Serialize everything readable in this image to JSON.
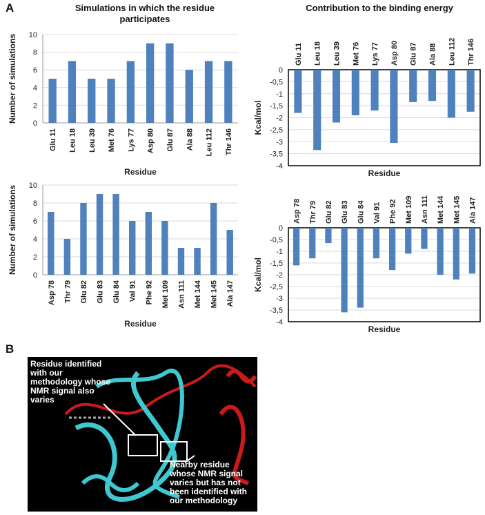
{
  "panel_labels": [
    "A",
    "B"
  ],
  "chart_data": [
    {
      "type": "bar",
      "title": "Simulations  in which the residue participates",
      "categories": [
        "Glu 11",
        "Leu 18",
        "Leu 39",
        "Met 76",
        "Lys 77",
        "Asp 80",
        "Glu 87",
        "Ala 88",
        "Leu 112",
        "Thr 146"
      ],
      "values": [
        5,
        7,
        5,
        5,
        7,
        9,
        9,
        6,
        7,
        7
      ],
      "color": "#4f81bd",
      "ylim": [
        0,
        10
      ],
      "yticks": [
        0,
        2,
        4,
        6,
        8,
        10
      ],
      "grid": true,
      "ylabel": "Number of simulations",
      "xlabel": "Residue",
      "xaxis_position": "bottom",
      "frame": false
    },
    {
      "type": "bar",
      "title": "Contribution to the binding energy",
      "categories": [
        "Glu 11",
        "Leu 18",
        "Leu 39",
        "Met 76",
        "Lys 77",
        "Asp 80",
        "Glu 87",
        "Ala 88",
        "Leu 112",
        "Thr 146"
      ],
      "values": [
        -1.8,
        -3.35,
        -2.2,
        -1.9,
        -1.7,
        -3.05,
        -1.35,
        -1.3,
        -2.0,
        -1.75
      ],
      "color": "#4f81bd",
      "ylim": [
        -4,
        0
      ],
      "yticks": [
        0,
        {
          "value": -0.5,
          "label": "-0,5"
        },
        -1,
        {
          "value": -1.5,
          "label": "-1,5"
        },
        -2,
        {
          "value": -2.5,
          "label": "-2,5"
        },
        -3,
        {
          "value": -3.5,
          "label": "-3,5"
        },
        -4
      ],
      "grid": true,
      "ylabel": "Kcal/mol",
      "xlabel": "Residue",
      "xaxis_position": "top",
      "frame": true
    },
    {
      "type": "bar",
      "categories": [
        "Asp 78",
        "Thr 79",
        "Glu 82",
        "Glu 83",
        "Glu 84",
        "Val 91",
        "Phe 92",
        "Met 109",
        "Asn 111",
        "Met 144",
        "Met 145",
        "Ala 147"
      ],
      "values": [
        7,
        4,
        8,
        9,
        9,
        6,
        7,
        6,
        3,
        3,
        8,
        5
      ],
      "color": "#4f81bd",
      "ylim": [
        0,
        10
      ],
      "yticks": [
        0,
        2,
        4,
        6,
        8,
        10
      ],
      "grid": true,
      "ylabel": "Number of simulations",
      "xlabel": "Residue",
      "xaxis_position": "bottom",
      "frame": false
    },
    {
      "type": "bar",
      "categories": [
        "Asp 78",
        "Thr 79",
        "Glu 82",
        "Glu 83",
        "Glu 84",
        "Val 91",
        "Phe 92",
        "Met 109",
        "Asn 111",
        "Met 144",
        "Met 145",
        "Ala 147"
      ],
      "values": [
        -1.6,
        -1.3,
        -0.65,
        -3.6,
        -3.4,
        -1.3,
        -1.8,
        -1.1,
        -0.9,
        -2.0,
        -2.2,
        -1.95
      ],
      "color": "#4f81bd",
      "ylim": [
        -4,
        0
      ],
      "yticks": [
        0,
        {
          "value": -0.5,
          "label": "-0,5"
        },
        -1,
        {
          "value": -1.5,
          "label": "-1,5"
        },
        -2,
        {
          "value": -2.5,
          "label": "-2,5"
        },
        -3,
        {
          "value": -3.5,
          "label": "-3,5"
        },
        -4
      ],
      "grid": true,
      "ylabel": "Kcal/mol",
      "xlabel": "Residue",
      "xaxis_position": "top",
      "frame": true
    }
  ],
  "image": {
    "annotations": [
      "Residue identified with our methodology whose NMR signal also varies",
      "Nearby residue whose NMR signal varies but has not been identified with our methodology"
    ]
  }
}
